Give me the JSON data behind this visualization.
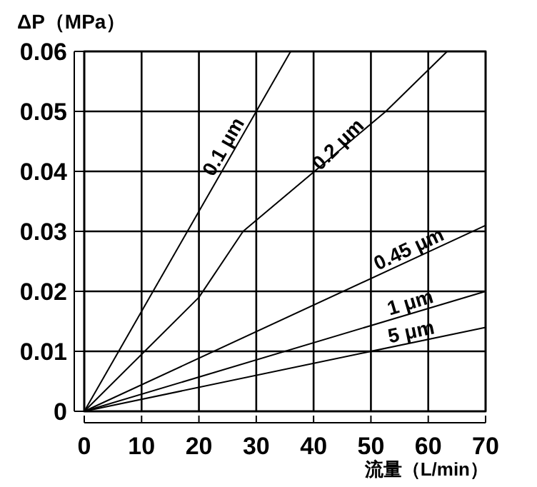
{
  "chart_data": {
    "type": "line",
    "xlabel": "流量（L/min）",
    "ylabel": "ΔP（MPa）",
    "xlim": [
      0,
      70
    ],
    "ylim": [
      0,
      0.06
    ],
    "xticks": [
      0,
      10,
      20,
      30,
      40,
      50,
      60,
      70
    ],
    "yticks": [
      0,
      0.01,
      0.02,
      0.03,
      0.04,
      0.05,
      0.06
    ],
    "grid": true,
    "line_style": "solid",
    "series": [
      {
        "name": "0.1 μm",
        "color": "#000000",
        "x": [
          0,
          36
        ],
        "values": [
          0,
          0.06
        ]
      },
      {
        "name": "0.2 μm",
        "color": "#000000",
        "x": [
          0,
          10,
          20,
          27.7,
          52.6,
          63.3
        ],
        "values": [
          0,
          0.0095,
          0.019,
          0.03,
          0.05,
          0.06
        ]
      },
      {
        "name": "0.45 μm",
        "color": "#000000",
        "x": [
          0,
          70
        ],
        "values": [
          0,
          0.031
        ]
      },
      {
        "name": "1 μm",
        "color": "#000000",
        "x": [
          0,
          70
        ],
        "values": [
          0,
          0.02
        ]
      },
      {
        "name": "5 μm",
        "color": "#000000",
        "x": [
          0,
          70
        ],
        "values": [
          0,
          0.014
        ]
      }
    ]
  }
}
